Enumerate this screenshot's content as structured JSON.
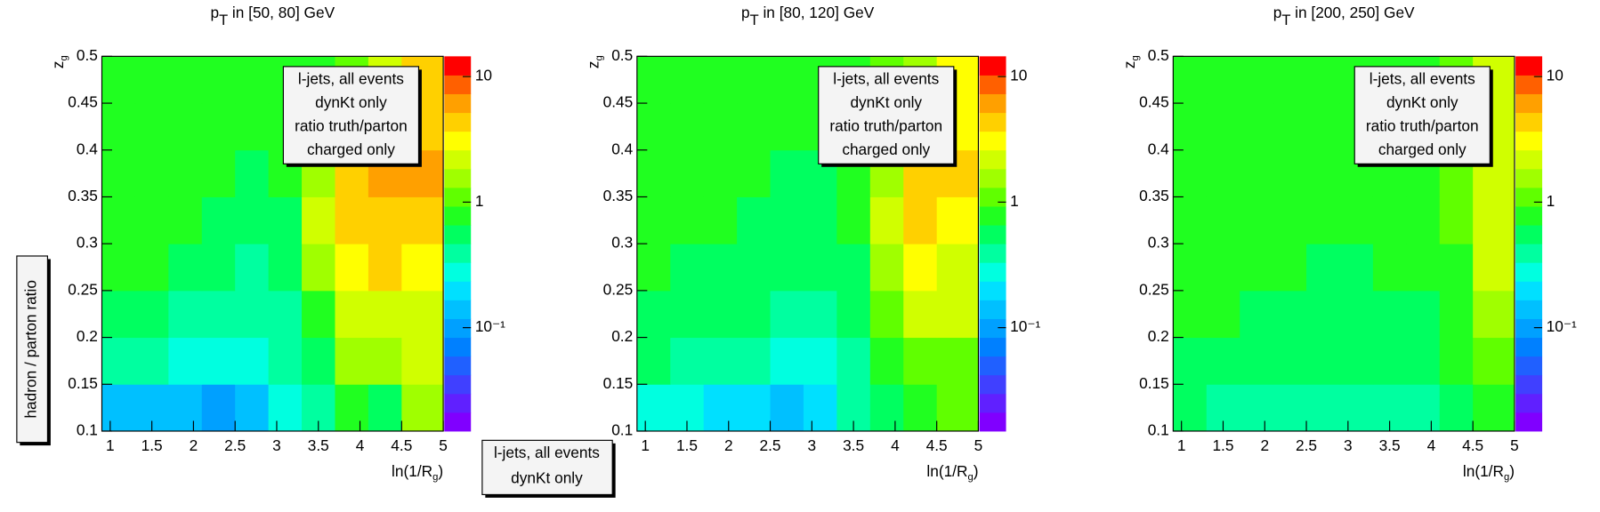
{
  "chart_data": [
    {
      "type": "heatmap",
      "title": [
        "p",
        "T",
        " in [50, 80] GeV"
      ],
      "xlabel": [
        "ln(1/R",
        "g",
        ")"
      ],
      "ylabel": [
        "z",
        "g"
      ],
      "xbins": [
        0.9,
        1.3,
        1.7,
        2.1,
        2.5,
        2.9,
        3.3,
        3.7,
        4.1,
        4.5,
        5.0
      ],
      "ybins": [
        0.1,
        0.15,
        0.2,
        0.25,
        0.3,
        0.35,
        0.4,
        0.45,
        0.5
      ],
      "values": [
        [
          0.15,
          0.15,
          0.12,
          0.1,
          0.15,
          0.3,
          0.4,
          0.8,
          0.6,
          1.5
        ],
        [
          0.4,
          0.35,
          0.3,
          0.25,
          0.3,
          0.35,
          0.5,
          1.5,
          1.5,
          2
        ],
        [
          0.5,
          0.5,
          0.45,
          0.4,
          0.35,
          0.45,
          0.8,
          2.5,
          2.5,
          2
        ],
        [
          0.7,
          0.7,
          0.6,
          0.5,
          0.4,
          0.5,
          1.5,
          3,
          4,
          3
        ],
        [
          0.8,
          0.8,
          0.7,
          0.6,
          0.5,
          0.6,
          2,
          5,
          5,
          5
        ],
        [
          0.8,
          0.8,
          0.8,
          0.7,
          0.6,
          0.7,
          1.5,
          5,
          6,
          6
        ],
        [
          0.8,
          0.8,
          0.8,
          0.7,
          0.7,
          0.7,
          1,
          2,
          3,
          5
        ],
        [
          0.8,
          0.8,
          0.8,
          0.7,
          0.7,
          0.7,
          0.8,
          1.2,
          2,
          5
        ]
      ],
      "xlim": [
        0.9,
        5
      ],
      "ylim": [
        0.1,
        0.5
      ],
      "xticks": [
        1,
        1.5,
        2,
        2.5,
        3,
        3.5,
        4,
        4.5,
        5
      ],
      "yticks": [
        0.1,
        0.15,
        0.2,
        0.25,
        0.3,
        0.35,
        0.4,
        0.45,
        0.5
      ],
      "zlim": [
        0.015,
        14.5
      ],
      "zticks": [
        {
          "value": 0.1,
          "label": "10⁻¹"
        },
        1,
        10
      ],
      "log_z": true,
      "palette": [
        "#8000ff",
        "#6020ff",
        "#4040ff",
        "#2060ff",
        "#0080ff",
        "#00a0ff",
        "#00c0ff",
        "#00e0ff",
        "#00ffe0",
        "#00ffa0",
        "#00ff60",
        "#20ff20",
        "#60ff00",
        "#a0ff00",
        "#d0ff00",
        "#ffff00",
        "#ffd000",
        "#ffa000",
        "#ff6000",
        "#ff0000"
      ],
      "legend": [
        "l-jets, all events",
        "dynKt only",
        "ratio truth/parton",
        "charged only"
      ]
    },
    {
      "type": "heatmap",
      "title": [
        "p",
        "T",
        " in [80, 120] GeV"
      ],
      "xlabel": [
        "ln(1/R",
        "g",
        ")"
      ],
      "ylabel": [
        "z",
        "g"
      ],
      "xbins": [
        0.9,
        1.3,
        1.7,
        2.1,
        2.5,
        2.9,
        3.3,
        3.7,
        4.1,
        4.5,
        5.0
      ],
      "ybins": [
        0.1,
        0.15,
        0.2,
        0.25,
        0.3,
        0.35,
        0.4,
        0.45,
        0.5
      ],
      "values": [
        [
          0.3,
          0.25,
          0.2,
          0.2,
          0.15,
          0.2,
          0.4,
          0.6,
          0.8,
          1
        ],
        [
          0.5,
          0.45,
          0.4,
          0.35,
          0.3,
          0.3,
          0.4,
          0.8,
          1.2,
          1
        ],
        [
          0.6,
          0.55,
          0.5,
          0.5,
          0.45,
          0.45,
          0.5,
          1.2,
          2.5,
          2
        ],
        [
          0.7,
          0.65,
          0.6,
          0.55,
          0.5,
          0.5,
          0.6,
          1.5,
          3,
          2.5
        ],
        [
          0.8,
          0.75,
          0.7,
          0.65,
          0.6,
          0.6,
          0.8,
          2,
          4,
          3
        ],
        [
          0.85,
          0.8,
          0.75,
          0.7,
          0.65,
          0.65,
          0.8,
          1.5,
          5,
          4
        ],
        [
          0.85,
          0.8,
          0.8,
          0.75,
          0.7,
          0.7,
          0.8,
          1.2,
          2,
          3
        ],
        [
          0.85,
          0.85,
          0.8,
          0.8,
          0.75,
          0.75,
          0.8,
          1,
          1.5,
          3
        ]
      ],
      "xlim": [
        0.9,
        5
      ],
      "ylim": [
        0.1,
        0.5
      ],
      "xticks": [
        1,
        1.5,
        2,
        2.5,
        3,
        3.5,
        4,
        4.5,
        5
      ],
      "yticks": [
        0.1,
        0.15,
        0.2,
        0.25,
        0.3,
        0.35,
        0.4,
        0.45,
        0.5
      ],
      "zlim": [
        0.015,
        14.5
      ],
      "zticks": [
        {
          "value": 0.1,
          "label": "10⁻¹"
        },
        1,
        10
      ],
      "log_z": true,
      "palette": [
        "#8000ff",
        "#6020ff",
        "#4040ff",
        "#2060ff",
        "#0080ff",
        "#00a0ff",
        "#00c0ff",
        "#00e0ff",
        "#00ffe0",
        "#00ffa0",
        "#00ff60",
        "#20ff20",
        "#60ff00",
        "#a0ff00",
        "#d0ff00",
        "#ffff00",
        "#ffd000",
        "#ffa000",
        "#ff6000",
        "#ff0000"
      ],
      "legend": [
        "l-jets, all events",
        "dynKt only",
        "ratio truth/parton",
        "charged only"
      ]
    },
    {
      "type": "heatmap",
      "title": [
        "p",
        "T",
        " in [200, 250] GeV"
      ],
      "xlabel": [
        "ln(1/R",
        "g",
        ")"
      ],
      "ylabel": [
        "z",
        "g"
      ],
      "xbins": [
        0.9,
        1.3,
        1.7,
        2.1,
        2.5,
        2.9,
        3.3,
        3.7,
        4.1,
        4.5,
        5.0
      ],
      "ybins": [
        0.1,
        0.15,
        0.2,
        0.25,
        0.3,
        0.35,
        0.4,
        0.45,
        0.5
      ],
      "values": [
        [
          0.5,
          0.45,
          0.4,
          0.4,
          0.35,
          0.4,
          0.45,
          0.45,
          0.5,
          0.8
        ],
        [
          0.65,
          0.6,
          0.55,
          0.55,
          0.5,
          0.5,
          0.55,
          0.6,
          0.7,
          1.2
        ],
        [
          0.75,
          0.7,
          0.65,
          0.6,
          0.6,
          0.6,
          0.6,
          0.65,
          0.8,
          1.5
        ],
        [
          0.8,
          0.75,
          0.7,
          0.7,
          0.65,
          0.65,
          0.7,
          0.75,
          0.9,
          2
        ],
        [
          0.85,
          0.8,
          0.75,
          0.7,
          0.7,
          0.7,
          0.75,
          0.8,
          1,
          2
        ],
        [
          0.85,
          0.8,
          0.8,
          0.75,
          0.75,
          0.75,
          0.8,
          0.85,
          1.1,
          2
        ],
        [
          0.85,
          0.85,
          0.8,
          0.8,
          0.8,
          0.8,
          0.8,
          0.9,
          1.2,
          2
        ],
        [
          0.85,
          0.85,
          0.85,
          0.8,
          0.8,
          0.8,
          0.85,
          0.9,
          1.2,
          2.5
        ]
      ],
      "xlim": [
        0.9,
        5
      ],
      "ylim": [
        0.1,
        0.5
      ],
      "xticks": [
        1,
        1.5,
        2,
        2.5,
        3,
        3.5,
        4,
        4.5,
        5
      ],
      "yticks": [
        0.1,
        0.15,
        0.2,
        0.25,
        0.3,
        0.35,
        0.4,
        0.45,
        0.5
      ],
      "zlim": [
        0.015,
        14.5
      ],
      "zticks": [
        {
          "value": 0.1,
          "label": "10⁻¹"
        },
        1,
        10
      ],
      "log_z": true,
      "palette": [
        "#8000ff",
        "#6020ff",
        "#4040ff",
        "#2060ff",
        "#0080ff",
        "#00a0ff",
        "#00c0ff",
        "#00e0ff",
        "#00ffe0",
        "#00ffa0",
        "#00ff60",
        "#20ff20",
        "#60ff00",
        "#a0ff00",
        "#d0ff00",
        "#ffff00",
        "#ffd000",
        "#ffa000",
        "#ff6000",
        "#ff0000"
      ],
      "legend": [
        "l-jets, all events",
        "dynKt only",
        "ratio truth/parton",
        "charged only"
      ]
    }
  ],
  "side_label": "hadron / parton ratio",
  "bottom_legend": [
    "l-jets, all events",
    "dynKt only"
  ]
}
